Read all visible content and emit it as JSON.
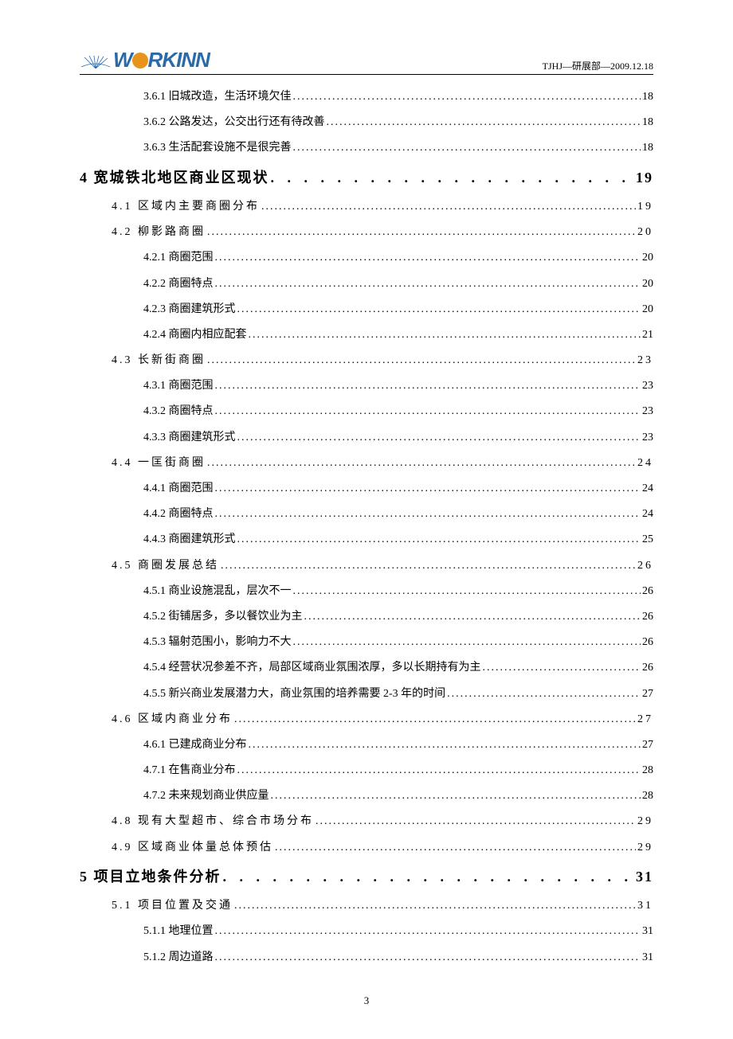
{
  "header": {
    "logo_left": "W",
    "logo_right": "RKINN",
    "right_text": "TJHJ—研展部—2009.12.18"
  },
  "toc": [
    {
      "level": 3,
      "title": "3.6.1 旧城改造，生活环境欠佳",
      "page": "18"
    },
    {
      "level": 3,
      "title": "3.6.2 公路发达，公交出行还有待改善",
      "page": "18"
    },
    {
      "level": 3,
      "title": "3.6.3 生活配套设施不是很完善",
      "page": "18"
    },
    {
      "level": 1,
      "title": "4 宽城铁北地区商业区现状",
      "page": "19"
    },
    {
      "level": 2,
      "title": "4.1 区域内主要商圈分布",
      "page": "19"
    },
    {
      "level": 2,
      "title": "4.2 柳影路商圈",
      "page": "20"
    },
    {
      "level": 3,
      "title": "4.2.1 商圈范围",
      "page": "20"
    },
    {
      "level": 3,
      "title": "4.2.2 商圈特点",
      "page": "20"
    },
    {
      "level": 3,
      "title": "4.2.3 商圈建筑形式",
      "page": "20"
    },
    {
      "level": 3,
      "title": "4.2.4 商圈内相应配套",
      "page": "21"
    },
    {
      "level": 2,
      "title": "4.3 长新街商圈",
      "page": "23"
    },
    {
      "level": 3,
      "title": "4.3.1 商圈范围",
      "page": "23"
    },
    {
      "level": 3,
      "title": "4.3.2 商圈特点",
      "page": "23"
    },
    {
      "level": 3,
      "title": "4.3.3 商圈建筑形式",
      "page": "23"
    },
    {
      "level": 2,
      "title": "4.4 一匡街商圈",
      "page": "24"
    },
    {
      "level": 3,
      "title": "4.4.1 商圈范围",
      "page": "24"
    },
    {
      "level": 3,
      "title": "4.4.2 商圈特点",
      "page": "24"
    },
    {
      "level": 3,
      "title": "4.4.3 商圈建筑形式",
      "page": "25"
    },
    {
      "level": 2,
      "title": "4.5 商圈发展总结",
      "page": "26"
    },
    {
      "level": 3,
      "title": "4.5.1 商业设施混乱，层次不一",
      "page": "26"
    },
    {
      "level": 3,
      "title": "4.5.2 街铺居多，多以餐饮业为主",
      "page": "26"
    },
    {
      "level": 3,
      "title": "4.5.3 辐射范围小，影响力不大",
      "page": "26"
    },
    {
      "level": 3,
      "title": "4.5.4 经营状况参差不齐，局部区域商业氛围浓厚，多以长期持有为主",
      "page": "26"
    },
    {
      "level": 3,
      "title": "4.5.5 新兴商业发展潜力大，商业氛围的培养需要 2-3 年的时间",
      "page": "27"
    },
    {
      "level": 2,
      "title": "4.6 区域内商业分布",
      "page": "27"
    },
    {
      "level": 3,
      "title": "4.6.1 已建成商业分布",
      "page": "27"
    },
    {
      "level": 3,
      "title": "4.7.1 在售商业分布",
      "page": "28"
    },
    {
      "level": 3,
      "title": "4.7.2 未来规划商业供应量",
      "page": "28"
    },
    {
      "level": 2,
      "title": "4.8 现有大型超市、综合市场分布",
      "page": "29"
    },
    {
      "level": 2,
      "title": "4.9 区域商业体量总体预估",
      "page": "29"
    },
    {
      "level": 1,
      "title": "5 项目立地条件分析",
      "page": "31"
    },
    {
      "level": 2,
      "title": "5.1 项目位置及交通",
      "page": "31"
    },
    {
      "level": 3,
      "title": "5.1.1 地理位置",
      "page": "31"
    },
    {
      "level": 3,
      "title": "5.1.2 周边道路",
      "page": "31"
    }
  ],
  "page_number": "3"
}
